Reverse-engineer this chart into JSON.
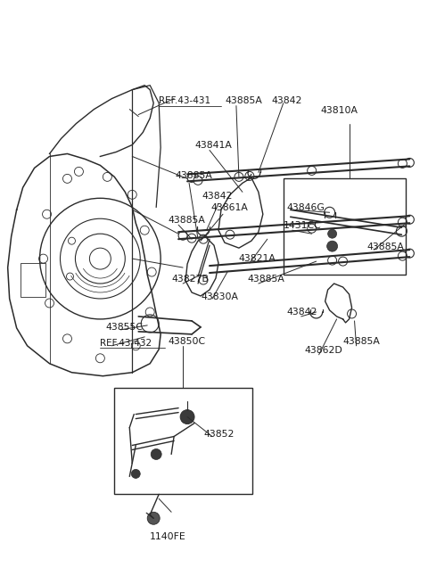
{
  "bg_color": "#ffffff",
  "lc": "#2a2a2a",
  "tc": "#1a1a1a",
  "figsize": [
    4.8,
    6.55
  ],
  "dpi": 100,
  "xlim": [
    0,
    480
  ],
  "ylim": [
    0,
    655
  ]
}
